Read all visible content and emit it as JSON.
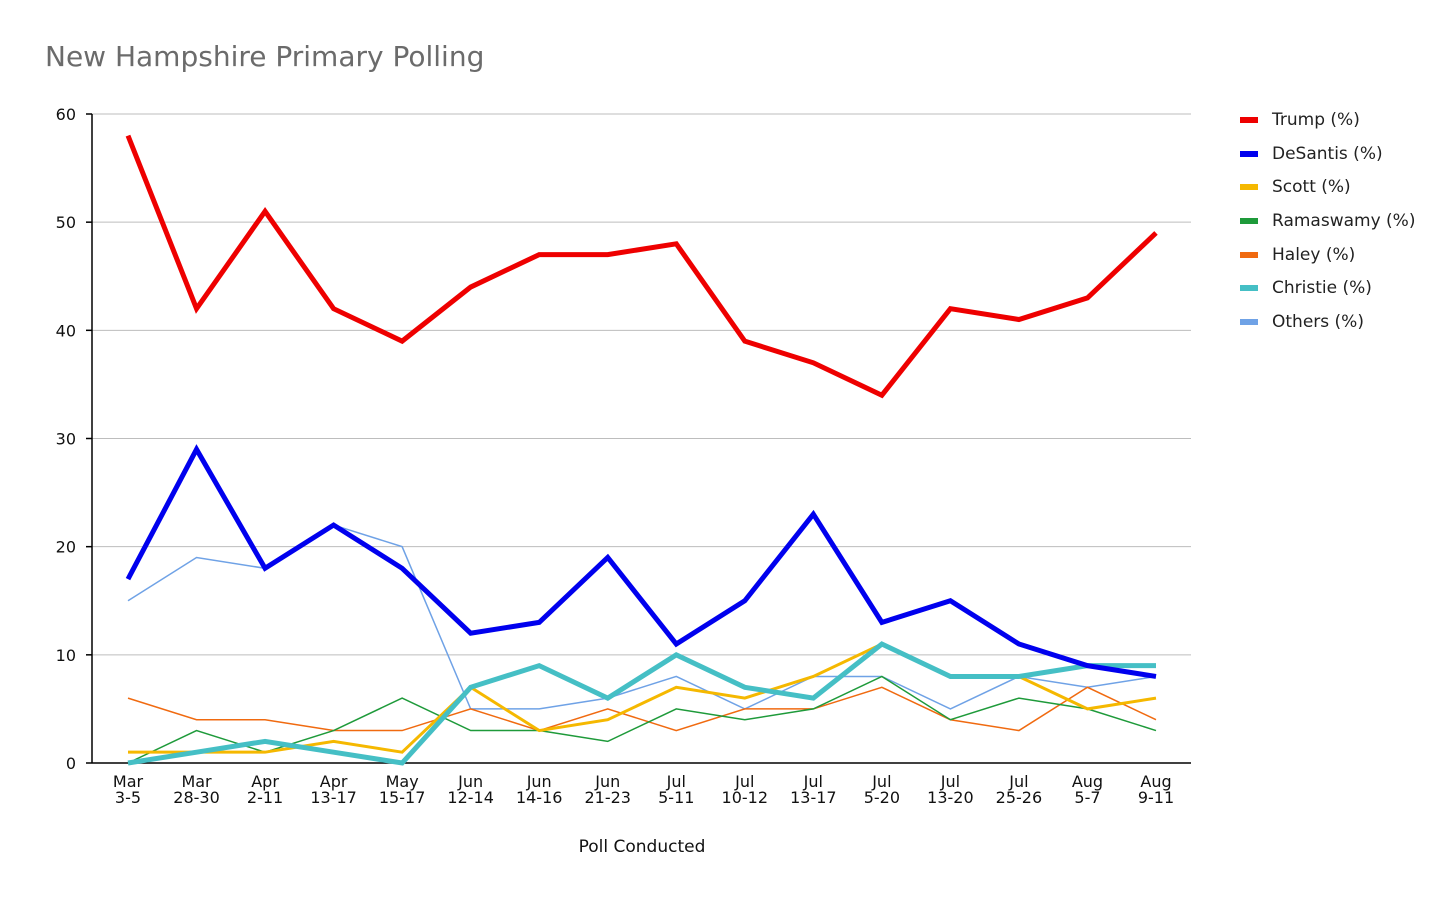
{
  "chart_data": {
    "type": "line",
    "title": "New Hampshire Primary Polling",
    "xlabel": "Poll Conducted",
    "ylabel": "",
    "ylim": [
      0,
      60
    ],
    "yticks": [
      0,
      10,
      20,
      30,
      40,
      50,
      60
    ],
    "grid": true,
    "legend_position": "right",
    "categories": [
      [
        "Mar",
        "3-5"
      ],
      [
        "Mar",
        "28-30"
      ],
      [
        "Apr",
        "2-11"
      ],
      [
        "Apr",
        "13-17"
      ],
      [
        "May",
        "15-17"
      ],
      [
        "Jun",
        "12-14"
      ],
      [
        "Jun",
        "14-16"
      ],
      [
        "Jun",
        "21-23"
      ],
      [
        "Jul",
        "5-11"
      ],
      [
        "Jul",
        "10-12"
      ],
      [
        "Jul",
        "13-17"
      ],
      [
        "Jul",
        "5-20"
      ],
      [
        "Jul",
        "13-20"
      ],
      [
        "Jul",
        "25-26"
      ],
      [
        "Aug",
        "5-7"
      ],
      [
        "Aug",
        "9-11"
      ]
    ],
    "series": [
      {
        "name": "Trump (%)",
        "color": "#ee0000",
        "width": 5,
        "values": [
          58,
          42,
          51,
          42,
          39,
          44,
          47,
          47,
          48,
          39,
          37,
          34,
          42,
          41,
          43,
          49
        ]
      },
      {
        "name": "DeSantis (%)",
        "color": "#0000ee",
        "width": 5,
        "values": [
          17,
          29,
          18,
          22,
          18,
          12,
          13,
          19,
          11,
          15,
          23,
          13,
          15,
          11,
          9,
          8
        ]
      },
      {
        "name": "Scott (%)",
        "color": "#f5b800",
        "width": 3,
        "values": [
          1,
          1,
          1,
          2,
          1,
          7,
          3,
          4,
          7,
          6,
          8,
          11,
          8,
          8,
          5,
          6
        ]
      },
      {
        "name": "Ramaswamy (%)",
        "color": "#1e9a3a",
        "width": 1.5,
        "values": [
          0,
          3,
          1,
          3,
          6,
          3,
          3,
          2,
          5,
          4,
          5,
          8,
          4,
          6,
          5,
          3
        ]
      },
      {
        "name": "Haley (%)",
        "color": "#f06a10",
        "width": 1.5,
        "values": [
          6,
          4,
          4,
          3,
          3,
          5,
          3,
          5,
          3,
          5,
          5,
          7,
          4,
          3,
          7,
          4
        ]
      },
      {
        "name": "Christie (%)",
        "color": "#45bfc5",
        "width": 5,
        "values": [
          0,
          1,
          2,
          1,
          0,
          7,
          9,
          6,
          10,
          7,
          6,
          11,
          8,
          8,
          9,
          9
        ]
      },
      {
        "name": "Others (%)",
        "color": "#6fa2e6",
        "width": 1.5,
        "values": [
          15,
          19,
          18,
          22,
          20,
          5,
          5,
          6,
          8,
          5,
          8,
          8,
          5,
          8,
          7,
          8
        ]
      }
    ]
  }
}
